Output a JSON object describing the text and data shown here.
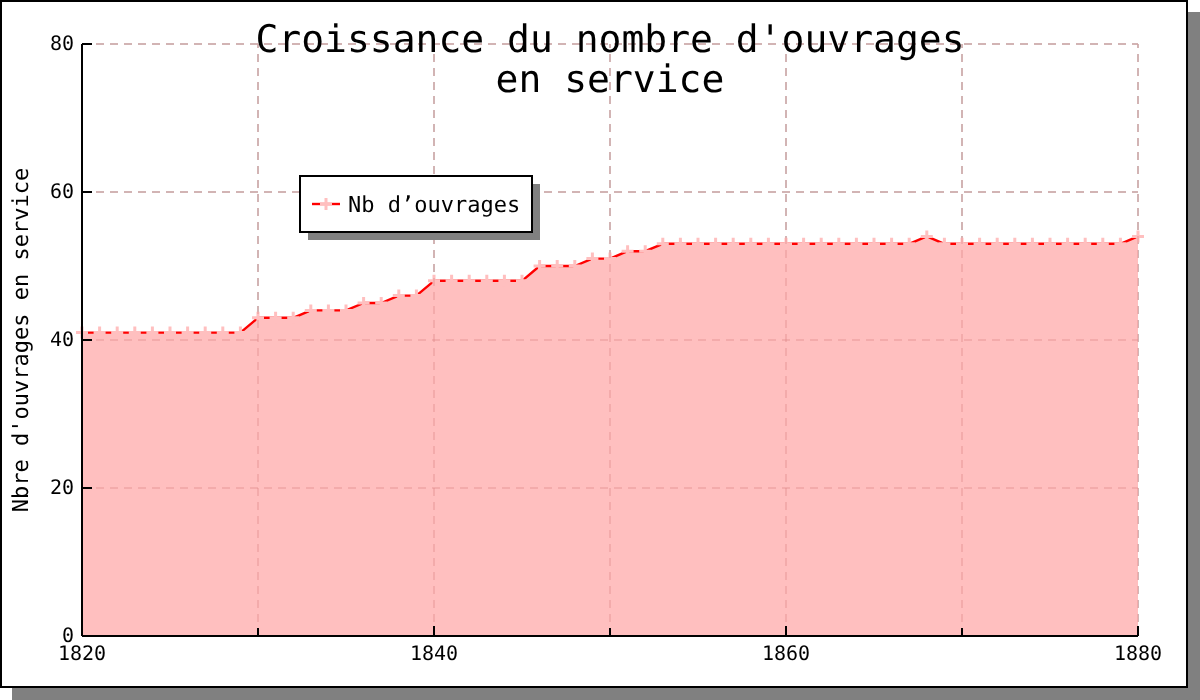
{
  "chart_data": {
    "type": "area",
    "title": "Croissance du nombre d'ouvrages\nen service",
    "ylabel": "Nbre d'ouvrages en service",
    "x": [
      1820,
      1821,
      1822,
      1823,
      1824,
      1825,
      1826,
      1827,
      1828,
      1829,
      1830,
      1831,
      1832,
      1833,
      1834,
      1835,
      1836,
      1837,
      1838,
      1839,
      1840,
      1841,
      1842,
      1843,
      1844,
      1845,
      1846,
      1847,
      1848,
      1849,
      1850,
      1851,
      1852,
      1853,
      1854,
      1855,
      1856,
      1857,
      1858,
      1859,
      1860,
      1861,
      1862,
      1863,
      1864,
      1865,
      1866,
      1867,
      1868,
      1869,
      1870,
      1871,
      1872,
      1873,
      1874,
      1875,
      1876,
      1877,
      1878,
      1879,
      1880
    ],
    "series": [
      {
        "name": "Nb d’ouvrages",
        "color": "#ff0000",
        "values": [
          41,
          41,
          41,
          41,
          41,
          41,
          41,
          41,
          41,
          41,
          43,
          43,
          43,
          44,
          44,
          44,
          45,
          45,
          46,
          46,
          48,
          48,
          48,
          48,
          48,
          48,
          50,
          50,
          50,
          51,
          51,
          52,
          52,
          53,
          53,
          53,
          53,
          53,
          53,
          53,
          53,
          53,
          53,
          53,
          53,
          53,
          53,
          53,
          54,
          53,
          53,
          53,
          53,
          53,
          53,
          53,
          53,
          53,
          53,
          53,
          54
        ]
      }
    ],
    "xlim": [
      1820,
      1880
    ],
    "xticks": [
      1820,
      {
        "value": 1830,
        "label": null
      },
      1840,
      {
        "value": 1850,
        "label": null
      },
      1860,
      {
        "value": 1870,
        "label": null
      },
      1880
    ],
    "ylim": [
      0,
      80
    ],
    "yticks": [
      0,
      20,
      40,
      60,
      80
    ],
    "grid": true,
    "legend": "top left",
    "marker": "cross",
    "line_style": "solid"
  }
}
